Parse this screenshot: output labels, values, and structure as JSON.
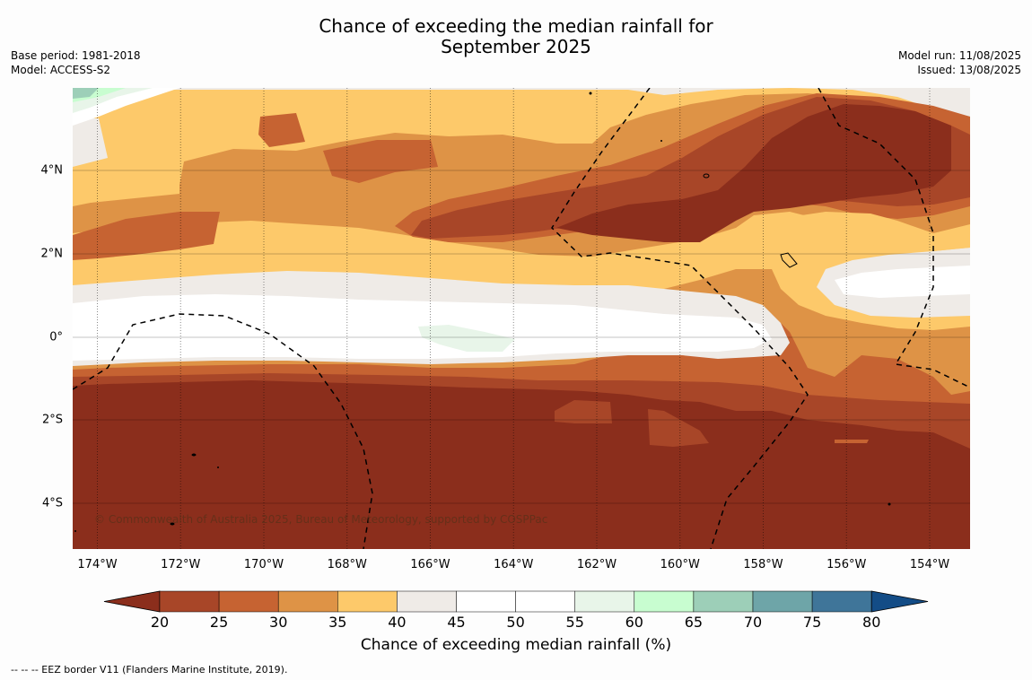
{
  "title_line1": "Chance of exceeding the median rainfall for",
  "title_line2": "September 2025",
  "meta_left": {
    "base_period": "Base period: 1981-2018",
    "model": "Model: ACCESS-S2"
  },
  "meta_right": {
    "model_run": "Model run: 11/08/2025",
    "issued": "Issued: 13/08/2025"
  },
  "map": {
    "lon_ticks": [
      "174°W",
      "172°W",
      "170°W",
      "168°W",
      "166°W",
      "164°W",
      "162°W",
      "160°W",
      "158°W",
      "156°W",
      "154°W"
    ],
    "lat_ticks": [
      "4°N",
      "2°N",
      "0°",
      "2°S",
      "4°S"
    ],
    "copyright": "© Commonwealth of Australia 2025, Bureau of Meteorology, supported by COSPPac"
  },
  "colorbar": {
    "label": "Chance of exceeding median rainfall (%)",
    "ticks": [
      "20",
      "25",
      "30",
      "35",
      "40",
      "45",
      "50",
      "55",
      "60",
      "65",
      "70",
      "75",
      "80"
    ],
    "colors": {
      "below20": "#8b2e1c",
      "20-25": "#a84628",
      "25-30": "#c66332",
      "30-35": "#de9346",
      "35-40": "#fdc96a",
      "40-45": "#efebe7",
      "45-50": "#ffffff",
      "50-55": "#ffffff",
      "55-60": "#e8f5e9",
      "60-65": "#c8fdd0",
      "65-70": "#9dcfb8",
      "70-75": "#6ea5a8",
      "75-80": "#3f7599",
      "above80": "#134c86"
    }
  },
  "eez_note": "--  --  -- EEZ border V11 (Flanders Marine Institute, 2019)."
}
